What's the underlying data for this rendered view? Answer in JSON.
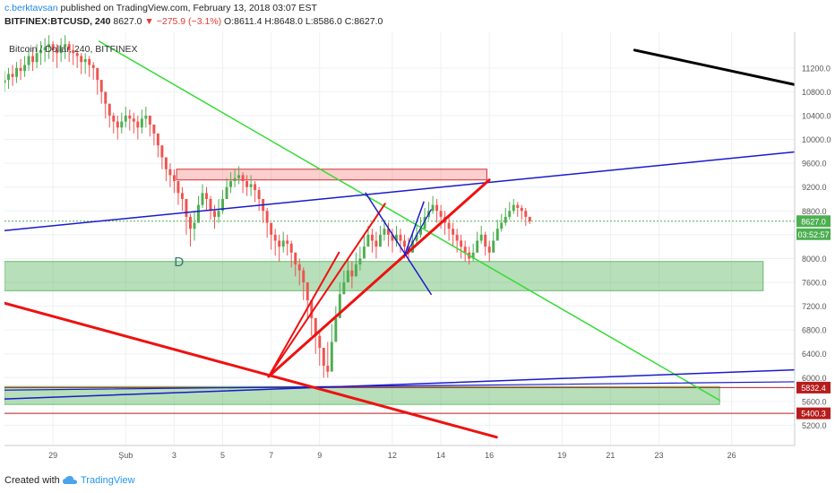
{
  "header": {
    "author": "c.berktavsan",
    "published": "published on TradingView.com, February 13, 2018 03:07 EST",
    "symbol": "BITFINEX:BTCUSD, 240",
    "last": "8627.0",
    "change": "−275.9 (−3.1%)",
    "ohlc": "O:8611.4 H:8648.0 L:8586.0 C:8627.0"
  },
  "footer": {
    "created_with": "Created with",
    "brand": "TradingView"
  },
  "colors": {
    "up": "#4caf50",
    "down": "#ef5350",
    "accent": "#2196f3"
  },
  "chart_data": {
    "type": "candlestick",
    "title": "Bitcoin / Dollar, 240, BITFINEX",
    "y_axis": {
      "ticks": [
        5200,
        5600,
        6000,
        6400,
        6800,
        7200,
        7600,
        8000,
        8400,
        8800,
        9200,
        9600,
        10000,
        10400,
        10800,
        11200
      ],
      "labels": [
        "5200.0",
        "5600.0",
        "6000.0",
        "6400.0",
        "6800.0",
        "7200.0",
        "7600.0",
        "8000.0",
        "8400.0",
        "8800.0",
        "9200.0",
        "9600.0",
        "10000.0",
        "10400.0",
        "10800.0",
        "11200.0"
      ],
      "range": [
        4860,
        11800
      ]
    },
    "x_axis": {
      "range": [
        0,
        32.6
      ],
      "ticks": [
        {
          "x": 2,
          "label": "29"
        },
        {
          "x": 5,
          "label": "Şub"
        },
        {
          "x": 7,
          "label": "3"
        },
        {
          "x": 9,
          "label": "5"
        },
        {
          "x": 11,
          "label": "7"
        },
        {
          "x": 13,
          "label": "9"
        },
        {
          "x": 16,
          "label": "12"
        },
        {
          "x": 18,
          "label": "14"
        },
        {
          "x": 20,
          "label": "16"
        },
        {
          "x": 23,
          "label": "19"
        },
        {
          "x": 25,
          "label": "21"
        },
        {
          "x": 27,
          "label": "23"
        },
        {
          "x": 30,
          "label": "26"
        }
      ]
    },
    "price_labels": [
      {
        "value": 8627.0,
        "label": "8627.0",
        "sub": "03:52:57",
        "color": "#4caf50"
      },
      {
        "value": 5832.4,
        "label": "5832.4",
        "color": "#b71c1c"
      },
      {
        "value": 5400.3,
        "label": "5400.3",
        "color": "#b71c1c"
      }
    ],
    "candles": {
      "start_x": 0.0,
      "step": 0.1667,
      "closes": [
        11000,
        11100,
        11050,
        11200,
        11150,
        11250,
        11400,
        11300,
        11450,
        11500,
        11550,
        11600,
        11500,
        11450,
        11550,
        11600,
        11500,
        11450,
        11400,
        11300,
        11350,
        11250,
        11200,
        11000,
        10800,
        10600,
        10400,
        10300,
        10200,
        10300,
        10400,
        10350,
        10300,
        10200,
        10350,
        10400,
        10250,
        10100,
        9900,
        9700,
        9500,
        9400,
        9300,
        9100,
        9000,
        8700,
        8500,
        8600,
        8900,
        9100,
        9000,
        8800,
        8700,
        8800,
        9000,
        9200,
        9300,
        9350,
        9400,
        9300,
        9200,
        9250,
        9150,
        9000,
        8800,
        8600,
        8400,
        8300,
        8200,
        8300,
        8250,
        8100,
        7900,
        7800,
        7600,
        7300,
        7000,
        6700,
        6500,
        6200,
        6100,
        6600,
        7000,
        7400,
        7600,
        7800,
        7700,
        7900,
        8000,
        8200,
        8400,
        8300,
        8200,
        8400,
        8500,
        8400,
        8300,
        8400,
        8300,
        8200,
        8100,
        8300,
        8400,
        8500,
        8700,
        8800,
        8900,
        8800,
        8700,
        8600,
        8500,
        8400,
        8300,
        8200,
        8100,
        8000,
        8100,
        8300,
        8400,
        8200,
        8100,
        8300,
        8500,
        8600,
        8700,
        8800,
        8900,
        8850,
        8800,
        8700,
        8627
      ],
      "highs": [
        11150,
        11200,
        11250,
        11300,
        11350,
        11400,
        11550,
        11550,
        11600,
        11650,
        11700,
        11750,
        11650,
        11600,
        11700,
        11750,
        11650,
        11600,
        11500,
        11450,
        11450,
        11400,
        11300,
        11150,
        11000,
        10800,
        10600,
        10450,
        10400,
        10450,
        10550,
        10500,
        10450,
        10400,
        10500,
        10550,
        10400,
        10250,
        10100,
        9900,
        9700,
        9600,
        9500,
        9300,
        9200,
        9000,
        8750,
        8800,
        9050,
        9250,
        9200,
        9050,
        8900,
        9000,
        9150,
        9350,
        9450,
        9500,
        9550,
        9450,
        9400,
        9400,
        9300,
        9200,
        9000,
        8850,
        8600,
        8500,
        8400,
        8450,
        8400,
        8300,
        8100,
        8000,
        7850,
        7600,
        7300,
        7000,
        6800,
        6500,
        6600,
        6900,
        7200,
        7600,
        7800,
        8000,
        7950,
        8100,
        8200,
        8400,
        8550,
        8500,
        8450,
        8550,
        8650,
        8600,
        8500,
        8550,
        8500,
        8400,
        8350,
        8450,
        8550,
        8700,
        8850,
        8950,
        9050,
        9000,
        8900,
        8800,
        8700,
        8600,
        8500,
        8400,
        8300,
        8200,
        8250,
        8450,
        8550,
        8450,
        8300,
        8450,
        8650,
        8750,
        8850,
        8950,
        9000,
        8950,
        8900,
        8850,
        8700
      ],
      "lows": [
        10800,
        10850,
        10900,
        10950,
        11000,
        11050,
        11150,
        11150,
        11200,
        11250,
        11300,
        11350,
        11300,
        11200,
        11300,
        11350,
        11300,
        11250,
        11200,
        11100,
        11100,
        11050,
        11000,
        10750,
        10600,
        10350,
        10200,
        10100,
        10000,
        10100,
        10200,
        10150,
        10100,
        10000,
        10100,
        10200,
        10050,
        9900,
        9700,
        9500,
        9300,
        9200,
        9100,
        8900,
        8800,
        8400,
        8200,
        8300,
        8600,
        8850,
        8800,
        8650,
        8500,
        8600,
        8750,
        9000,
        9100,
        9200,
        9250,
        9100,
        9050,
        9050,
        8950,
        8800,
        8600,
        8350,
        8150,
        8050,
        7950,
        8100,
        8050,
        7850,
        7700,
        7550,
        7300,
        7000,
        6700,
        6400,
        6200,
        6000,
        6000,
        6300,
        6800,
        7200,
        7400,
        7600,
        7500,
        7700,
        7800,
        8000,
        8200,
        8100,
        8000,
        8200,
        8300,
        8200,
        8100,
        8200,
        8100,
        8000,
        7950,
        8100,
        8250,
        8350,
        8550,
        8650,
        8750,
        8600,
        8500,
        8400,
        8300,
        8200,
        8100,
        8000,
        7950,
        7900,
        7950,
        8100,
        8250,
        8050,
        7950,
        8100,
        8350,
        8450,
        8550,
        8650,
        8750,
        8700,
        8650,
        8550,
        8580
      ]
    },
    "zones": [
      {
        "x0": 7.1,
        "x1": 19.9,
        "y0": 9320,
        "y1": 9500,
        "fill": "rgba(239,83,80,0.28)",
        "stroke": "#d32f2f"
      },
      {
        "x0": 0.0,
        "x1": 31.3,
        "y0": 7460,
        "y1": 7950,
        "fill": "rgba(76,175,80,0.40)",
        "stroke": "#66bb6a"
      },
      {
        "x0": 0.0,
        "x1": 29.5,
        "y0": 5550,
        "y1": 5850,
        "fill": "rgba(76,175,80,0.40)",
        "stroke": "#66bb6a"
      }
    ],
    "hlines": [
      {
        "y": 5832.4,
        "color": "#b71c1c",
        "width": 1
      },
      {
        "y": 5400.3,
        "color": "#b71c1c",
        "width": 1
      },
      {
        "y": 8627.0,
        "color": "#4caf50",
        "width": 1,
        "dash": "2,2"
      }
    ],
    "trendlines": [
      {
        "x0": 26.0,
        "y0": 11500,
        "x1": 32.6,
        "y1": 10920,
        "color": "#000000",
        "width": 3
      },
      {
        "x0": 3.9,
        "y0": 11650,
        "x1": 29.5,
        "y1": 5620,
        "color": "#33dd33",
        "width": 1.5
      },
      {
        "x0": 0.0,
        "y0": 8470,
        "x1": 32.6,
        "y1": 9790,
        "color": "#1a1acc",
        "width": 1.5
      },
      {
        "x0": 0.0,
        "y0": 5640,
        "x1": 32.6,
        "y1": 6130,
        "color": "#1a1acc",
        "width": 1.5
      },
      {
        "x0": 0.0,
        "y0": 5790,
        "x1": 32.6,
        "y1": 5930,
        "color": "#1a1acc",
        "width": 1.2
      },
      {
        "x0": 0.0,
        "y0": 7250,
        "x1": 20.3,
        "y1": 5000,
        "color": "#ee1111",
        "width": 3
      },
      {
        "x0": 10.9,
        "y0": 6020,
        "x1": 20.0,
        "y1": 9320,
        "color": "#ee1111",
        "width": 3
      },
      {
        "x0": 10.9,
        "y0": 6020,
        "x1": 15.7,
        "y1": 8920,
        "color": "#ee1111",
        "width": 2
      },
      {
        "x0": 10.9,
        "y0": 6020,
        "x1": 13.8,
        "y1": 8100,
        "color": "#ee1111",
        "width": 2
      },
      {
        "x0": 14.9,
        "y0": 9100,
        "x1": 17.6,
        "y1": 7400,
        "color": "#1a1acc",
        "width": 1.5
      },
      {
        "x0": 16.5,
        "y0": 8050,
        "x1": 17.3,
        "y1": 8950,
        "color": "#1a1acc",
        "width": 1.5
      },
      {
        "x0": 16.6,
        "y0": 8100,
        "x1": 17.6,
        "y1": 8820,
        "color": "#1a1acc",
        "width": 1.2
      }
    ],
    "annotations": [
      {
        "x": 7.0,
        "y": 7870,
        "text": "D",
        "color": "#2e7d6b"
      }
    ]
  }
}
